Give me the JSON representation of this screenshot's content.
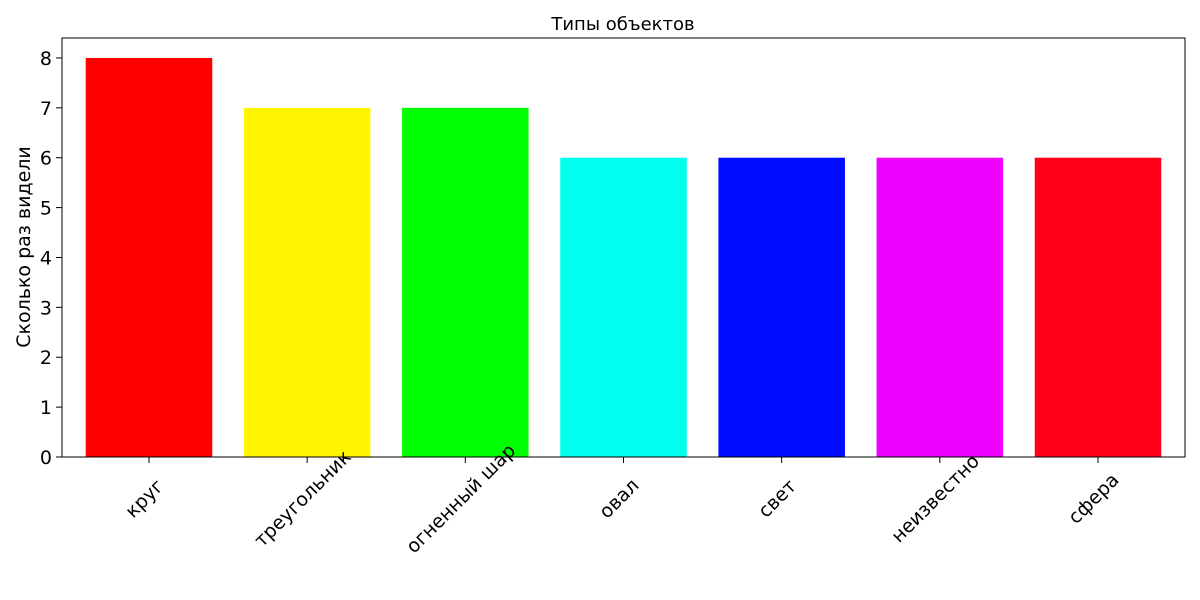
{
  "chart_data": {
    "type": "bar",
    "title": "Типы объектов",
    "xlabel": "",
    "ylabel": "Сколько раз видели",
    "categories": [
      "круг",
      "треугольник",
      "огненный шар",
      "овал",
      "свет",
      "неизвестно",
      "сфера"
    ],
    "values": [
      8,
      7,
      7,
      6,
      6,
      6,
      6
    ],
    "colors": [
      "#ff0000",
      "#fff500",
      "#00ff00",
      "#00ffee",
      "#000cff",
      "#ee00ff",
      "#ff001a"
    ],
    "ylim": [
      0,
      8.4
    ],
    "yticks": [
      0,
      1,
      2,
      3,
      4,
      5,
      6,
      7,
      8
    ],
    "grid": false,
    "legend": "none"
  }
}
